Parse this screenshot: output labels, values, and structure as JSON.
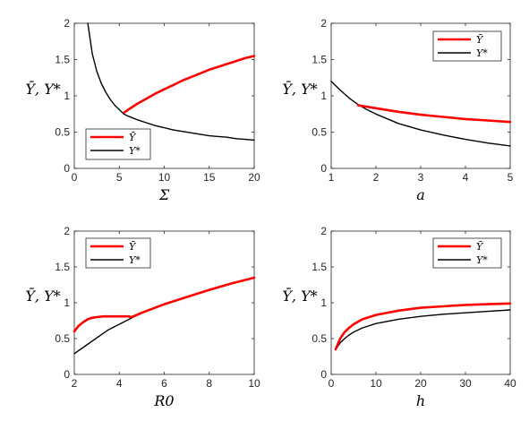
{
  "chart_data": [
    {
      "type": "line",
      "xlabel": "Σ",
      "ylabel": "Ȳ, Y*",
      "xlim": [
        0,
        20
      ],
      "ylim": [
        0,
        2
      ],
      "xticks": [
        "0",
        "5",
        "10",
        "15",
        "20"
      ],
      "yticks": [
        "0",
        "0.5",
        "1",
        "1.5",
        "2"
      ],
      "grid": false,
      "legend_position": "lower-right",
      "series": [
        {
          "name": "Ȳ",
          "color": "#ff0000",
          "x": [
            5.55,
            6,
            7,
            8,
            9,
            10,
            11,
            12,
            13,
            14,
            15,
            16,
            17,
            18,
            19,
            20
          ],
          "y": [
            0.77,
            0.81,
            0.89,
            0.96,
            1.03,
            1.09,
            1.15,
            1.21,
            1.26,
            1.31,
            1.36,
            1.4,
            1.44,
            1.48,
            1.52,
            1.55
          ]
        },
        {
          "name": "Y*",
          "color": "#000000",
          "x": [
            1.5,
            2,
            2.5,
            3,
            3.5,
            4,
            4.5,
            5,
            5.5,
            6,
            7,
            8,
            9,
            10,
            11,
            12,
            13,
            14,
            15,
            16,
            17,
            18,
            19,
            20
          ],
          "y": [
            2.0,
            1.58,
            1.34,
            1.17,
            1.05,
            0.95,
            0.87,
            0.81,
            0.75,
            0.72,
            0.67,
            0.63,
            0.59,
            0.56,
            0.53,
            0.51,
            0.49,
            0.47,
            0.45,
            0.44,
            0.43,
            0.41,
            0.4,
            0.39
          ]
        }
      ]
    },
    {
      "type": "line",
      "xlabel": "a",
      "ylabel": "Ȳ, Y*",
      "xlim": [
        1,
        5
      ],
      "ylim": [
        0,
        2
      ],
      "xticks": [
        "1",
        "2",
        "3",
        "4",
        "5"
      ],
      "yticks": [
        "0",
        "0.5",
        "1",
        "1.5",
        "2"
      ],
      "grid": false,
      "legend_position": "top-right",
      "series": [
        {
          "name": "Ȳ",
          "color": "#ff0000",
          "x": [
            1.6,
            2,
            2.5,
            3,
            3.5,
            4,
            4.5,
            5
          ],
          "y": [
            0.87,
            0.83,
            0.78,
            0.74,
            0.71,
            0.68,
            0.66,
            0.64
          ]
        },
        {
          "name": "Y*",
          "color": "#000000",
          "x": [
            1,
            1.2,
            1.4,
            1.6,
            1.8,
            2,
            2.5,
            3,
            3.5,
            4,
            4.5,
            5
          ],
          "y": [
            1.2,
            1.08,
            0.97,
            0.88,
            0.81,
            0.75,
            0.62,
            0.53,
            0.46,
            0.4,
            0.35,
            0.31
          ]
        }
      ]
    },
    {
      "type": "line",
      "xlabel": "R0",
      "ylabel": "Ȳ, Y*",
      "xlim": [
        2,
        10
      ],
      "ylim": [
        0,
        2
      ],
      "xticks": [
        "2",
        "4",
        "6",
        "8",
        "10"
      ],
      "yticks": [
        "0",
        "0.5",
        "1",
        "1.5",
        "2"
      ],
      "grid": false,
      "legend_position": "top-left",
      "series": [
        {
          "name": "Ȳ",
          "color": "#ff0000",
          "x": [
            2,
            2.2,
            2.4,
            2.6,
            2.8,
            3,
            3.3,
            3.6,
            4,
            4.4,
            4.55,
            5,
            6,
            7,
            8,
            9,
            10
          ],
          "y": [
            0.6,
            0.68,
            0.73,
            0.77,
            0.79,
            0.8,
            0.81,
            0.81,
            0.81,
            0.81,
            0.8,
            0.86,
            0.98,
            1.08,
            1.18,
            1.27,
            1.35
          ]
        },
        {
          "name": "Y*",
          "color": "#000000",
          "x": [
            2,
            2.5,
            3,
            3.5,
            4,
            4.5,
            5,
            6,
            7,
            8,
            9,
            10
          ],
          "y": [
            0.29,
            0.4,
            0.51,
            0.62,
            0.7,
            0.78,
            0.86,
            0.98,
            1.08,
            1.18,
            1.27,
            1.35
          ]
        }
      ]
    },
    {
      "type": "line",
      "xlabel": "h",
      "ylabel": "Ȳ, Y*",
      "xlim": [
        0,
        40
      ],
      "ylim": [
        0,
        2
      ],
      "xticks": [
        "0",
        "10",
        "20",
        "30",
        "40"
      ],
      "yticks": [
        "0",
        "0.5",
        "1",
        "1.5",
        "2"
      ],
      "grid": false,
      "legend_position": "top-right",
      "series": [
        {
          "name": "Ȳ",
          "color": "#ff0000",
          "x": [
            1,
            2,
            3,
            4,
            5,
            7,
            10,
            15,
            20,
            25,
            30,
            35,
            40
          ],
          "y": [
            0.35,
            0.5,
            0.59,
            0.65,
            0.7,
            0.77,
            0.83,
            0.89,
            0.93,
            0.95,
            0.97,
            0.98,
            0.99
          ]
        },
        {
          "name": "Y*",
          "color": "#000000",
          "x": [
            1,
            2,
            3,
            4,
            5,
            7,
            10,
            15,
            20,
            25,
            30,
            35,
            40
          ],
          "y": [
            0.35,
            0.44,
            0.5,
            0.55,
            0.59,
            0.65,
            0.71,
            0.77,
            0.81,
            0.84,
            0.86,
            0.88,
            0.9
          ]
        }
      ]
    }
  ]
}
